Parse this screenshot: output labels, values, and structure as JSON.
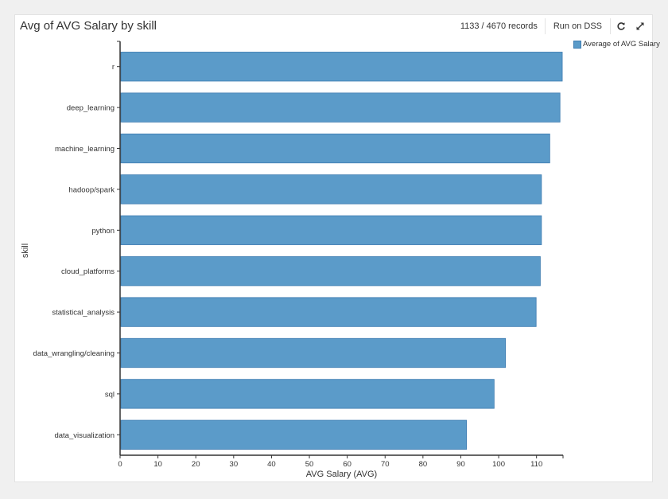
{
  "header": {
    "title": "Avg of AVG Salary by skill",
    "records": "1133 / 4670 records",
    "run_label": "Run on DSS",
    "refresh_icon": "refresh-icon",
    "expand_icon": "expand-icon"
  },
  "colors": {
    "bar": "#5b9bc9",
    "bar_stroke": "#3e7cb1",
    "axis": "#333333"
  },
  "chart_data": {
    "type": "bar",
    "orientation": "horizontal",
    "categories": [
      "r",
      "deep_learning",
      "machine_learning",
      "hadoop/spark",
      "python",
      "cloud_platforms",
      "statistical_analysis",
      "data_wrangling/cleaning",
      "sql",
      "data_visualization"
    ],
    "series": [
      {
        "name": "Average of AVG Salary",
        "values": [
          116.8,
          116.2,
          113.5,
          111.3,
          111.3,
          111.0,
          109.9,
          101.8,
          98.8,
          91.5
        ]
      }
    ],
    "xlabel": "AVG Salary (AVG)",
    "ylabel": "skill",
    "xlim": [
      0,
      117
    ],
    "xticks": [
      0,
      10,
      20,
      30,
      40,
      50,
      60,
      70,
      80,
      90,
      100,
      110
    ],
    "grid": false,
    "legend": "top-right"
  }
}
